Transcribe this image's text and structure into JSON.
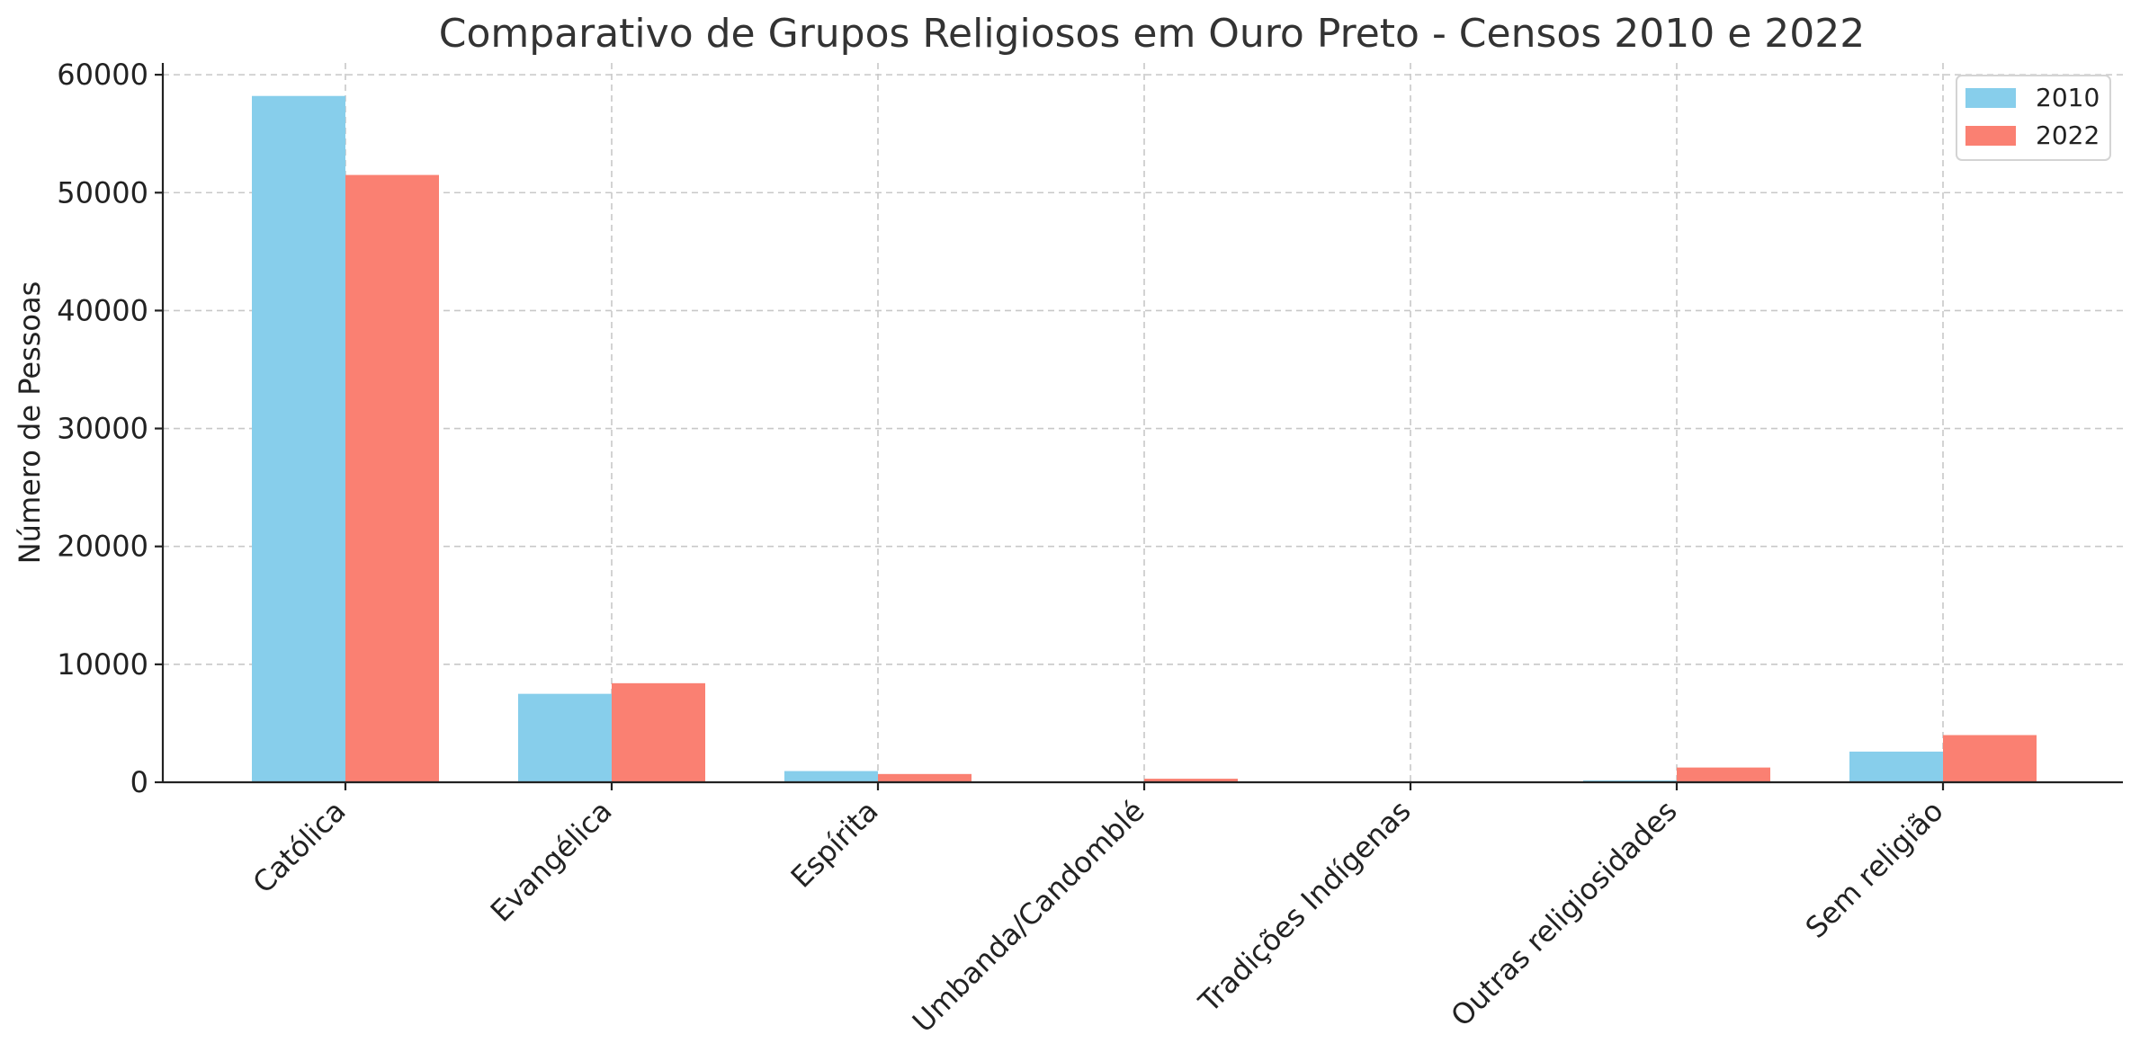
{
  "chart_data": {
    "type": "bar",
    "title": "Comparativo de Grupos Religiosos em Ouro Preto - Censos 2010 e 2022",
    "xlabel": "",
    "ylabel": "Número de Pessoas",
    "ylim": [
      0,
      61000
    ],
    "yticks": [
      0,
      10000,
      20000,
      30000,
      40000,
      50000,
      60000
    ],
    "ytick_labels": [
      "0",
      "10000",
      "20000",
      "30000",
      "40000",
      "50000",
      "60000"
    ],
    "grid": true,
    "legend_position": "top-right",
    "categories": [
      "Católica",
      "Evangélica",
      "Espírita",
      "Umbanda/Candomblé",
      "Tradições Indígenas",
      "Outras religiosidades",
      "Sem religião"
    ],
    "series": [
      {
        "name": "2010",
        "color": "#87CEEB",
        "values": [
          58200,
          7500,
          950,
          60,
          20,
          150,
          2600
        ]
      },
      {
        "name": "2022",
        "color": "#FA8072",
        "values": [
          51500,
          8400,
          700,
          300,
          30,
          1250,
          4000
        ]
      }
    ]
  }
}
